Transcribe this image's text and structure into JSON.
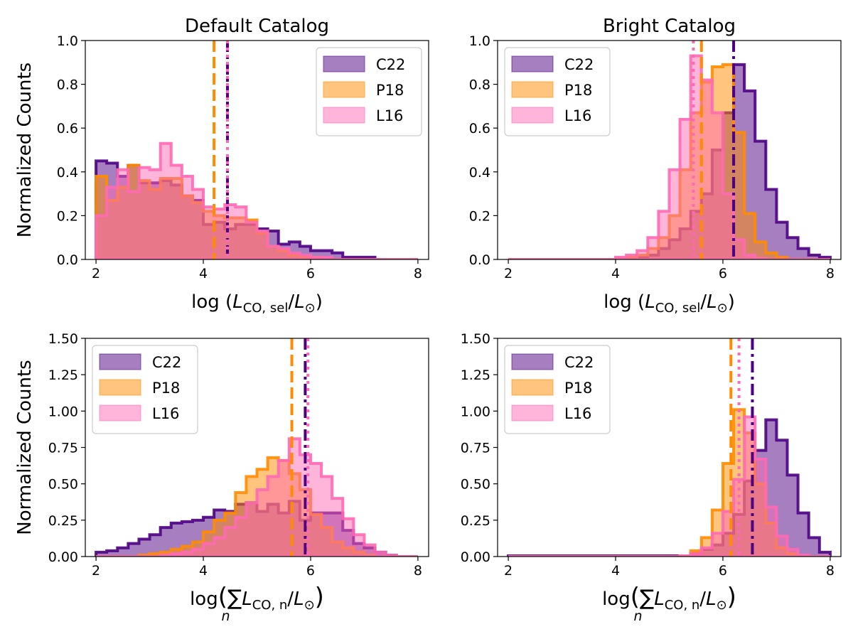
{
  "figure": {
    "colors": {
      "C22": "#4b0082",
      "P18": "#ff8c00",
      "L16": "#ff69b4"
    }
  },
  "chart_data": [
    {
      "type": "histogram",
      "title": "Default Catalog",
      "ylabel": "Normalized Counts",
      "xlabel": "log (L_CO, sel / L_⊙)",
      "xlabel_parts": {
        "pre": "log (",
        "sym1": "L",
        "sub1": "CO, sel",
        "mid": "/",
        "sym2": "L",
        "sub2": "⊙",
        "post": ")"
      },
      "xlim": [
        1.8,
        8.2
      ],
      "ylim": [
        0,
        1.0
      ],
      "xticks": [
        2,
        4,
        6,
        8
      ],
      "xtick_labels": [
        "2",
        "4",
        "6",
        "8"
      ],
      "yticks": [
        0,
        0.2,
        0.4,
        0.6,
        0.8,
        1.0
      ],
      "ytick_labels": [
        "0.0",
        "0.2",
        "0.4",
        "0.6",
        "0.8",
        "1.0"
      ],
      "bin_start": 2.0,
      "bin_width": 0.2,
      "legend_loc": "upper right",
      "series": [
        {
          "name": "C22",
          "color": "#4b0082",
          "line_style": "dashdot",
          "median": 4.45,
          "values": [
            0.45,
            0.44,
            0.38,
            0.43,
            0.35,
            0.35,
            0.36,
            0.34,
            0.29,
            0.27,
            0.16,
            0.17,
            0.14,
            0.16,
            0.16,
            0.14,
            0.13,
            0.07,
            0.08,
            0.06,
            0.04,
            0.04,
            0.03,
            0.01,
            0.01,
            0.01,
            0.0,
            0.0,
            0.0,
            0.0
          ]
        },
        {
          "name": "P18",
          "color": "#ff8c00",
          "line_style": "dashed",
          "median": 4.2,
          "values": [
            0.38,
            0.27,
            0.33,
            0.43,
            0.36,
            0.32,
            0.37,
            0.37,
            0.29,
            0.26,
            0.22,
            0.2,
            0.19,
            0.19,
            0.18,
            0.12,
            0.06,
            0.04,
            0.02,
            0.01,
            0.01,
            0.0,
            0.0,
            0.0,
            0.0,
            0.0,
            0.0,
            0.0,
            0.0,
            0.0
          ]
        },
        {
          "name": "L16",
          "color": "#ff69b4",
          "line_style": "dotted",
          "median": 4.45,
          "values": [
            0.2,
            0.33,
            0.41,
            0.31,
            0.42,
            0.41,
            0.53,
            0.43,
            0.38,
            0.32,
            0.24,
            0.23,
            0.25,
            0.24,
            0.17,
            0.13,
            0.06,
            0.05,
            0.03,
            0.02,
            0.01,
            0.01,
            0.0,
            0.0,
            0.0,
            0.0,
            0.0,
            0.0,
            0.0,
            0.0
          ]
        }
      ]
    },
    {
      "type": "histogram",
      "title": "Bright Catalog",
      "ylabel": "",
      "xlabel": "log (L_CO, sel / L_⊙)",
      "xlabel_parts": {
        "pre": "log (",
        "sym1": "L",
        "sub1": "CO, sel",
        "mid": "/",
        "sym2": "L",
        "sub2": "⊙",
        "post": ")"
      },
      "xlim": [
        1.8,
        8.2
      ],
      "ylim": [
        0,
        1.0
      ],
      "xticks": [
        2,
        4,
        6,
        8
      ],
      "xtick_labels": [
        "2",
        "4",
        "6",
        "8"
      ],
      "yticks": [
        0,
        0.2,
        0.4,
        0.6,
        0.8,
        1.0
      ],
      "ytick_labels": [
        "0.0",
        "0.2",
        "0.4",
        "0.6",
        "0.8",
        "1.0"
      ],
      "bin_start": 2.0,
      "bin_width": 0.2,
      "legend_loc": "upper left",
      "series": [
        {
          "name": "C22",
          "color": "#4b0082",
          "line_style": "dashdot",
          "median": 6.2,
          "values": [
            0,
            0,
            0,
            0,
            0,
            0,
            0,
            0,
            0,
            0,
            0.0,
            0.005,
            0.01,
            0.02,
            0.05,
            0.09,
            0.14,
            0.22,
            0.3,
            0.5,
            0.67,
            0.89,
            0.77,
            0.54,
            0.32,
            0.17,
            0.1,
            0.05,
            0.02,
            0.01
          ]
        },
        {
          "name": "P18",
          "color": "#ff8c00",
          "line_style": "dashed",
          "median": 5.6,
          "values": [
            0,
            0,
            0,
            0,
            0,
            0,
            0,
            0,
            0,
            0,
            0.005,
            0.01,
            0.02,
            0.05,
            0.1,
            0.2,
            0.41,
            0.67,
            0.81,
            0.88,
            0.89,
            0.58,
            0.21,
            0.08,
            0.03,
            0.01,
            0,
            0,
            0,
            0
          ]
        },
        {
          "name": "L16",
          "color": "#ff69b4",
          "line_style": "dotted",
          "median": 5.45,
          "values": [
            0,
            0,
            0,
            0,
            0,
            0,
            0,
            0,
            0,
            0,
            0.01,
            0.02,
            0.04,
            0.1,
            0.22,
            0.41,
            0.64,
            0.93,
            0.82,
            0.67,
            0.3,
            0.09,
            0.02,
            0.005,
            0,
            0,
            0,
            0,
            0,
            0
          ]
        }
      ]
    },
    {
      "type": "histogram",
      "title": "",
      "ylabel": "Normalized Counts",
      "xlabel": "log (Σ_n L_CO, n / L_⊙)",
      "xlabel_parts": {
        "pre": "log",
        "sigma": "∑",
        "n": "n",
        "sym1": "L",
        "sub1": "CO, n",
        "mid": "/",
        "sym2": "L",
        "sub2": "⊙"
      },
      "xlim": [
        1.8,
        8.2
      ],
      "ylim": [
        0,
        1.5
      ],
      "xticks": [
        2,
        4,
        6,
        8
      ],
      "xtick_labels": [
        "2",
        "4",
        "6",
        "8"
      ],
      "yticks": [
        0,
        0.25,
        0.5,
        0.75,
        1.0,
        1.25,
        1.5
      ],
      "ytick_labels": [
        "0.00",
        "0.25",
        "0.50",
        "0.75",
        "1.00",
        "1.25",
        "1.50"
      ],
      "bin_start": 2.0,
      "bin_width": 0.2,
      "legend_loc": "upper left",
      "series": [
        {
          "name": "C22",
          "color": "#4b0082",
          "line_style": "dashdot",
          "median": 5.9,
          "values": [
            0.03,
            0.04,
            0.06,
            0.09,
            0.12,
            0.15,
            0.2,
            0.23,
            0.24,
            0.25,
            0.27,
            0.32,
            0.31,
            0.36,
            0.37,
            0.31,
            0.36,
            0.3,
            0.38,
            0.25,
            0.3,
            0.3,
            0.3,
            0.18,
            0.09,
            0.06,
            0.03,
            0.01,
            0.0,
            0.0
          ]
        },
        {
          "name": "P18",
          "color": "#ff8c00",
          "line_style": "dashed",
          "median": 5.65,
          "values": [
            0.0,
            0.0,
            0.0,
            0.0,
            0.01,
            0.02,
            0.03,
            0.05,
            0.07,
            0.1,
            0.17,
            0.25,
            0.3,
            0.44,
            0.55,
            0.6,
            0.68,
            0.66,
            0.57,
            0.46,
            0.29,
            0.2,
            0.1,
            0.06,
            0.03,
            0.01,
            0.0,
            0.0,
            0.0,
            0.0
          ]
        },
        {
          "name": "L16",
          "color": "#ff69b4",
          "line_style": "dotted",
          "median": 5.95,
          "values": [
            0.0,
            0.0,
            0.0,
            0.0,
            0.0,
            0.0,
            0.01,
            0.02,
            0.03,
            0.05,
            0.09,
            0.13,
            0.2,
            0.27,
            0.37,
            0.46,
            0.55,
            0.66,
            0.81,
            0.7,
            0.64,
            0.55,
            0.4,
            0.26,
            0.15,
            0.08,
            0.03,
            0.01,
            0.0,
            0.0
          ]
        }
      ]
    },
    {
      "type": "histogram",
      "title": "",
      "ylabel": "",
      "xlabel": "log (Σ_n L_CO, n / L_⊙)",
      "xlabel_parts": {
        "pre": "log",
        "sigma": "∑",
        "n": "n",
        "sym1": "L",
        "sub1": "CO, n",
        "mid": "/",
        "sym2": "L",
        "sub2": "⊙"
      },
      "xlim": [
        1.8,
        8.2
      ],
      "ylim": [
        0,
        1.5
      ],
      "xticks": [
        2,
        4,
        6,
        8
      ],
      "xtick_labels": [
        "2",
        "4",
        "6",
        "8"
      ],
      "yticks": [
        0,
        0.25,
        0.5,
        0.75,
        1.0,
        1.25,
        1.5
      ],
      "ytick_labels": [
        "0.00",
        "0.25",
        "0.50",
        "0.75",
        "1.00",
        "1.25",
        "1.50"
      ],
      "bin_start": 2.0,
      "bin_width": 0.2,
      "legend_loc": "upper left",
      "series": [
        {
          "name": "C22",
          "color": "#4b0082",
          "line_style": "dashdot",
          "median": 6.55,
          "values": [
            0.005,
            0.005,
            0.005,
            0.005,
            0.005,
            0.005,
            0.005,
            0.005,
            0.005,
            0.005,
            0.005,
            0.005,
            0.005,
            0.005,
            0.005,
            0.005,
            0.005,
            0.02,
            0.05,
            0.08,
            0.16,
            0.29,
            0.52,
            0.73,
            0.94,
            0.8,
            0.56,
            0.3,
            0.13,
            0.03
          ]
        },
        {
          "name": "P18",
          "color": "#ff8c00",
          "line_style": "dashed",
          "median": 6.15,
          "values": [
            0,
            0,
            0,
            0,
            0,
            0,
            0,
            0,
            0,
            0,
            0,
            0,
            0,
            0,
            0,
            0,
            0.005,
            0.04,
            0.13,
            0.32,
            0.64,
            1.01,
            0.85,
            0.5,
            0.23,
            0.06,
            0.02,
            0,
            0,
            0
          ]
        },
        {
          "name": "L16",
          "color": "#ff69b4",
          "line_style": "dotted",
          "median": 6.3,
          "values": [
            0,
            0,
            0,
            0,
            0,
            0,
            0,
            0,
            0,
            0,
            0,
            0,
            0,
            0,
            0,
            0,
            0.005,
            0.02,
            0.06,
            0.16,
            0.31,
            0.53,
            0.96,
            0.67,
            0.34,
            0.14,
            0.05,
            0.01,
            0,
            0
          ]
        }
      ]
    }
  ]
}
